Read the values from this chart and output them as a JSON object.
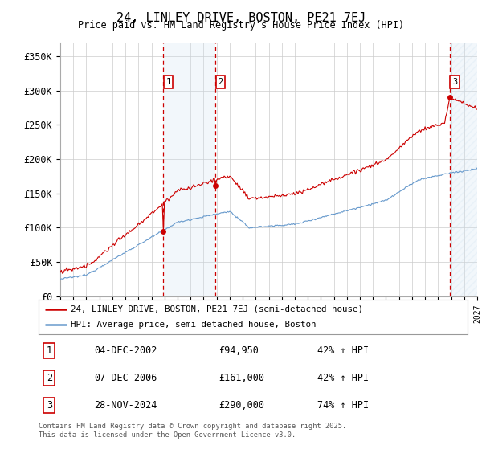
{
  "title": "24, LINLEY DRIVE, BOSTON, PE21 7EJ",
  "subtitle": "Price paid vs. HM Land Registry's House Price Index (HPI)",
  "ylim": [
    0,
    370000
  ],
  "xlim": [
    1995.0,
    2027.0
  ],
  "yticks": [
    0,
    50000,
    100000,
    150000,
    200000,
    250000,
    300000,
    350000
  ],
  "ytick_labels": [
    "£0",
    "£50K",
    "£100K",
    "£150K",
    "£200K",
    "£250K",
    "£300K",
    "£350K"
  ],
  "sale_dates": [
    2002.92,
    2006.93,
    2024.91
  ],
  "sale_prices": [
    94950,
    161000,
    290000
  ],
  "sale_labels": [
    "1",
    "2",
    "3"
  ],
  "legend_entries": [
    "24, LINLEY DRIVE, BOSTON, PE21 7EJ (semi-detached house)",
    "HPI: Average price, semi-detached house, Boston"
  ],
  "table_rows": [
    [
      "1",
      "04-DEC-2002",
      "£94,950",
      "42% ↑ HPI"
    ],
    [
      "2",
      "07-DEC-2006",
      "£161,000",
      "42% ↑ HPI"
    ],
    [
      "3",
      "28-NOV-2024",
      "£290,000",
      "74% ↑ HPI"
    ]
  ],
  "footnote": "Contains HM Land Registry data © Crown copyright and database right 2025.\nThis data is licensed under the Open Government Licence v3.0.",
  "price_color": "#cc0000",
  "hpi_color": "#6699cc",
  "background_color": "#ffffff",
  "grid_color": "#cccccc",
  "shade_color": "#cce0f0",
  "hatch_color": "#cce0f0"
}
